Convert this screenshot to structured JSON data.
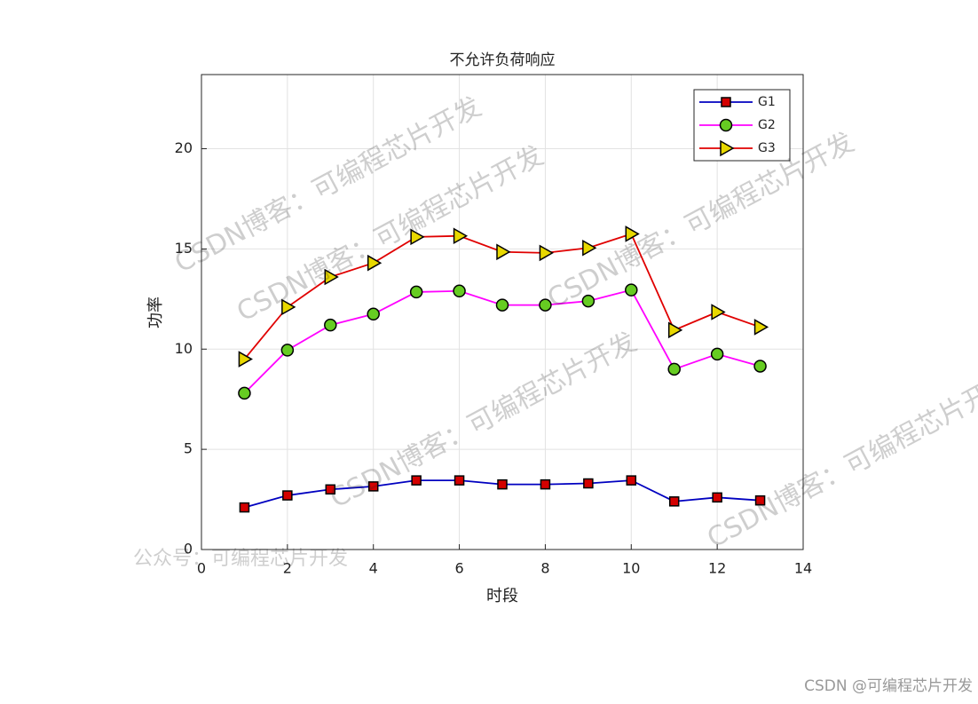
{
  "chart_data": {
    "type": "line",
    "title": "不允许负荷响应",
    "x_label": "时段",
    "y_label": "功率",
    "x": [
      1,
      2,
      3,
      4,
      5,
      6,
      7,
      8,
      9,
      10,
      11,
      12,
      13
    ],
    "series": [
      {
        "name": "G1",
        "color": "#0000c0",
        "marker": "square",
        "marker_color": "#d40000",
        "values": [
          2.1,
          2.7,
          3.0,
          3.15,
          3.45,
          3.45,
          3.25,
          3.25,
          3.3,
          3.45,
          2.4,
          2.6,
          2.45
        ]
      },
      {
        "name": "G2",
        "color": "#ff00ff",
        "marker": "circle",
        "marker_color": "#66cc22",
        "values": [
          7.8,
          9.95,
          11.2,
          11.75,
          12.85,
          12.9,
          12.2,
          12.2,
          12.4,
          12.95,
          9.0,
          9.75,
          9.15
        ]
      },
      {
        "name": "G3",
        "color": "#e00000",
        "marker": "triangle-right",
        "marker_color": "#e8d800",
        "values": [
          9.5,
          12.1,
          13.6,
          14.3,
          15.6,
          15.65,
          14.85,
          14.8,
          15.05,
          15.75,
          10.95,
          11.85,
          11.1
        ]
      }
    ],
    "xlim": [
      0,
      14
    ],
    "xticks": [
      0,
      2,
      4,
      6,
      8,
      10,
      12,
      14
    ],
    "ylim": [
      0,
      23.7
    ],
    "yticks": [
      0,
      5,
      10,
      15,
      20
    ],
    "grid": true,
    "legend": "northeast"
  },
  "watermarks": [
    "CSDN博客：可编程芯片开发",
    "CSDN博客：可编程芯片开发",
    "CSDN博客：可编程芯片开发",
    "CSDN博客：可编程芯片开发",
    "CSDN博客：可编程芯片开发",
    "公众号：可编程芯片开发"
  ],
  "credit": "CSDN @可编程芯片开发"
}
